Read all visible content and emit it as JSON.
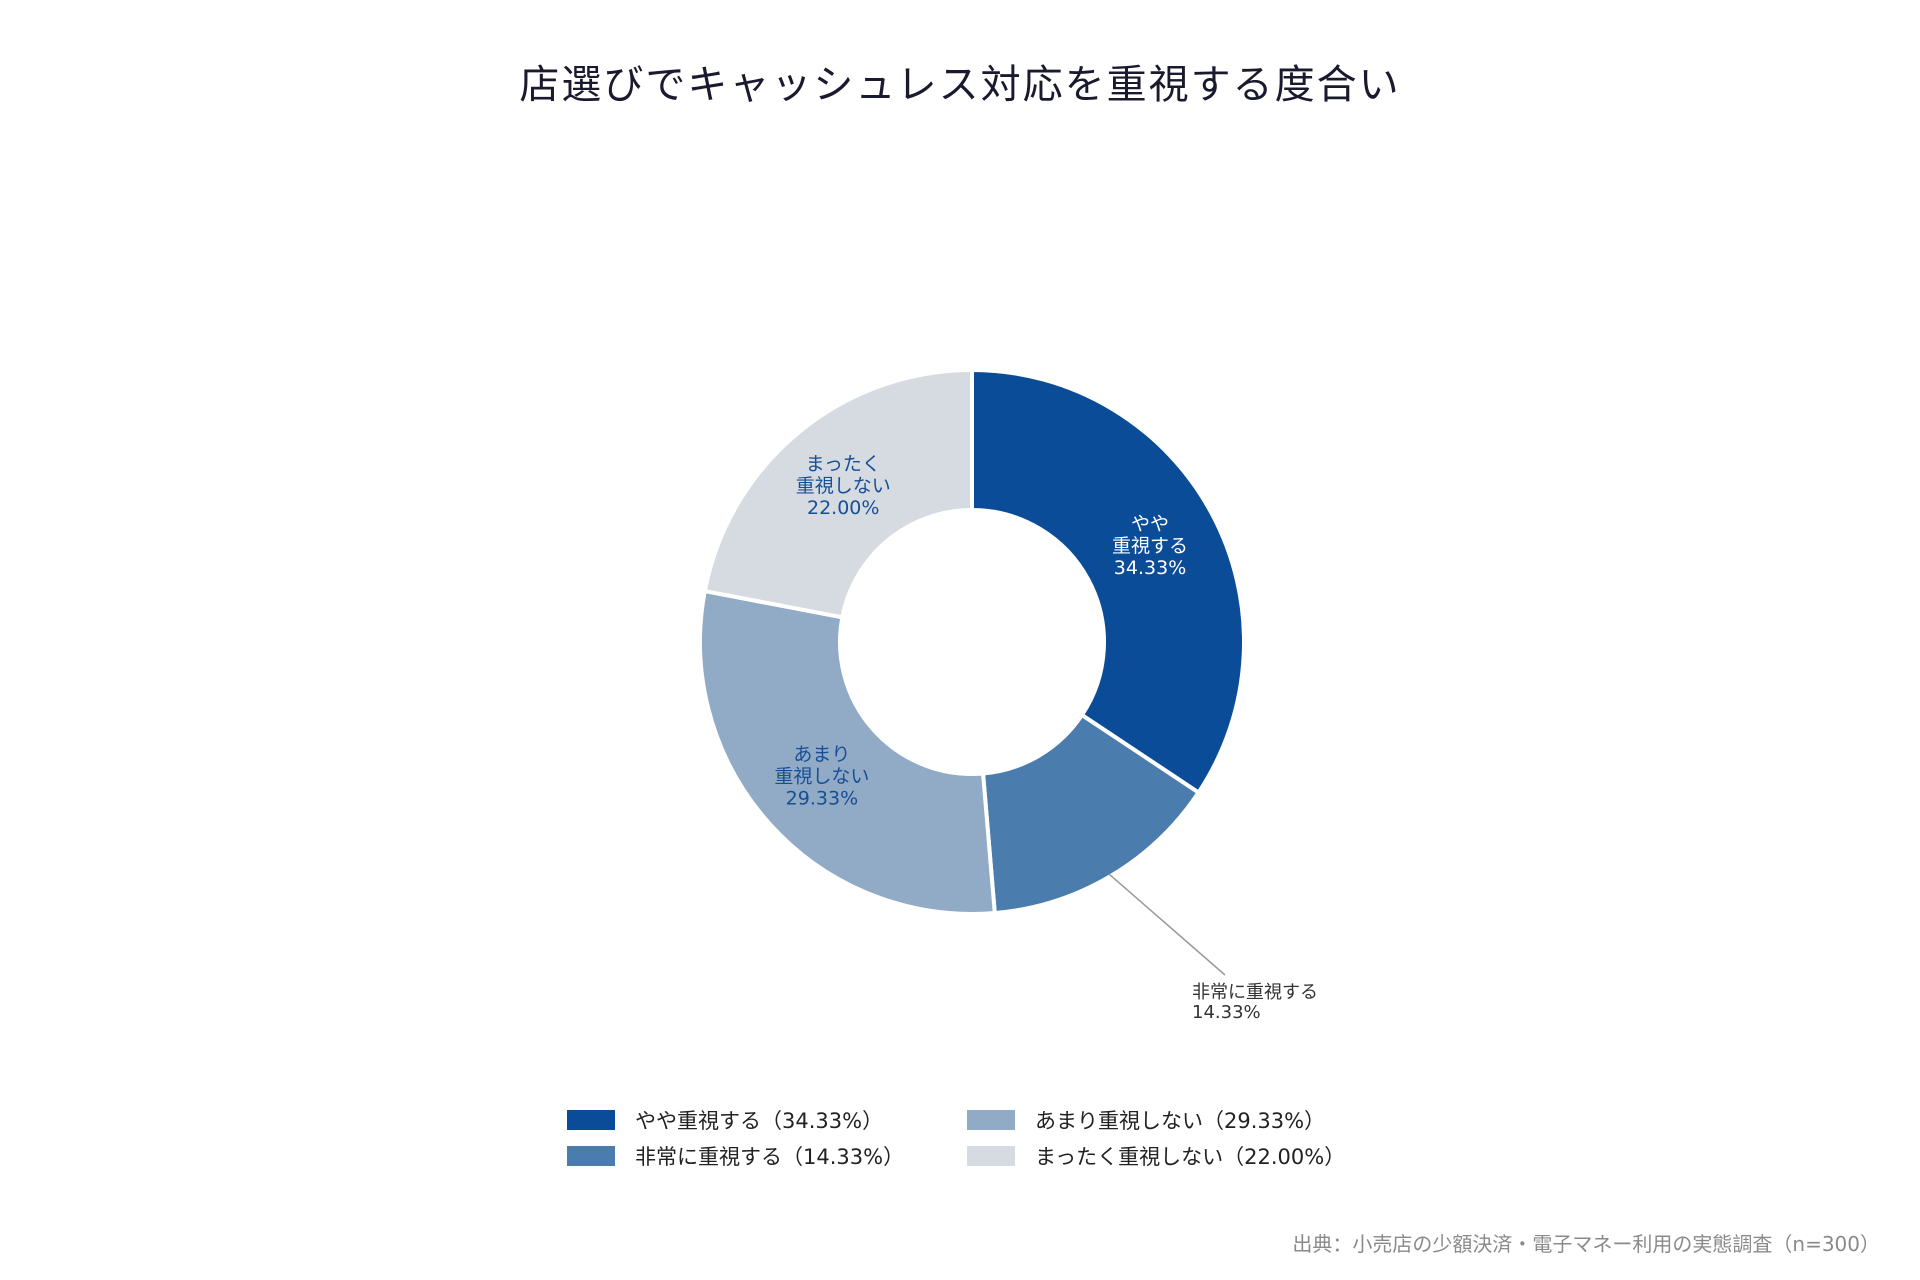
{
  "chart_data": {
    "type": "pie",
    "style": "donut",
    "title": "店選びでキャッシュレス対応を重視する度合い",
    "slices": [
      {
        "name": "やや重視する",
        "label_lines": [
          "やや",
          "重視する"
        ],
        "value": 34.33,
        "value_text": "34.33%",
        "color": "#0b4c99",
        "label_color": "#ffffff",
        "label_position": "inside",
        "legend": "やや重視する（34.33%）"
      },
      {
        "name": "非常に重視する",
        "label_lines": [
          "非常に重視する"
        ],
        "value": 14.33,
        "value_text": "14.33%",
        "color": "#4a7cae",
        "label_color": "#333333",
        "label_position": "outside",
        "legend": "非常に重視する（14.33%）"
      },
      {
        "name": "あまり重視しない",
        "label_lines": [
          "あまり",
          "重視しない"
        ],
        "value": 29.33,
        "value_text": "29.33%",
        "color": "#91aac6",
        "label_color": "#174f96",
        "label_position": "inside",
        "legend": "あまり重視しない（29.33%）"
      },
      {
        "name": "まったく重視しない",
        "label_lines": [
          "まったく",
          "重視しない"
        ],
        "value": 22.0,
        "value_text": "22.00%",
        "color": "#d5dbe0",
        "label_color": "#174f96",
        "label_position": "inside",
        "legend": "まったく重視しない（22.00%）"
      }
    ],
    "legend_placement": "bottom",
    "source": "出典：小売店の少額決済・電子マネー利用の実態調査（n=300）"
  }
}
